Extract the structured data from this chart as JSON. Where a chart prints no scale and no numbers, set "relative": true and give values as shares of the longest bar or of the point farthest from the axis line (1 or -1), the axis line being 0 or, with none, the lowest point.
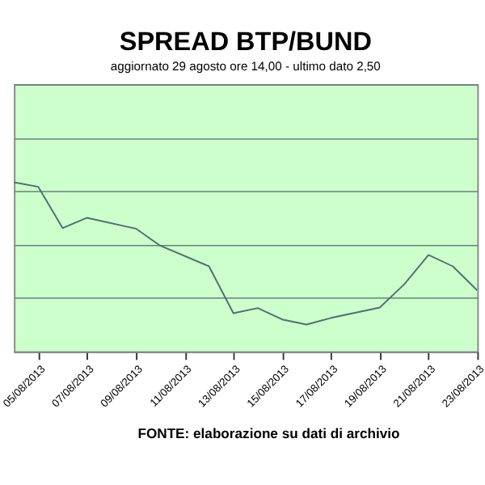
{
  "chart_data": {
    "type": "line",
    "title": "SPREAD BTP/BUND",
    "subtitle": "aggiornato 29 agosto ore 14,00 - ultimo dato 2,50",
    "x": [
      "2013-08-04",
      "2013-08-05",
      "2013-08-06",
      "2013-08-07",
      "2013-08-09",
      "2013-08-10",
      "2013-08-12",
      "2013-08-13",
      "2013-08-14",
      "2013-08-15",
      "2013-08-16",
      "2013-08-17",
      "2013-08-19",
      "2013-08-20",
      "2013-08-21",
      "2013-08-22",
      "2013-08-23"
    ],
    "series": [
      {
        "color": "#4f6f6f",
        "values": [
          1,
          0.973,
          0.729,
          0.79,
          0.726,
          0.625,
          0.503,
          0.226,
          0.256,
          0.189,
          0.159,
          0.198,
          0.259,
          0.396,
          0.57,
          0.503,
          0.36
        ]
      }
    ],
    "relative": true,
    "grid": "y",
    "legend": false,
    "marker": "none",
    "line_style": "solid",
    "xlim": [
      "2013-08-04",
      "2013-08-23"
    ],
    "xticks": [
      {
        "value": "2013-08-05",
        "label": "05/08/2013"
      },
      {
        "value": "2013-08-07",
        "label": "07/08/2013"
      },
      {
        "value": "2013-08-09",
        "label": "09/08/2013"
      },
      {
        "value": "2013-08-11",
        "label": "11/08/2013"
      },
      {
        "value": "2013-08-13",
        "label": "13/08/2013"
      },
      {
        "value": "2013-08-15",
        "label": "15/08/2013"
      },
      {
        "value": "2013-08-17",
        "label": "17/08/2013"
      },
      {
        "value": "2013-08-19",
        "label": "19/08/2013"
      },
      {
        "value": "2013-08-21",
        "label": "21/08/2013"
      },
      {
        "value": "2013-08-23",
        "label": "23/08/2013"
      }
    ],
    "annotations": [
      "FONTE: elaborazione su dati di archivio"
    ]
  }
}
